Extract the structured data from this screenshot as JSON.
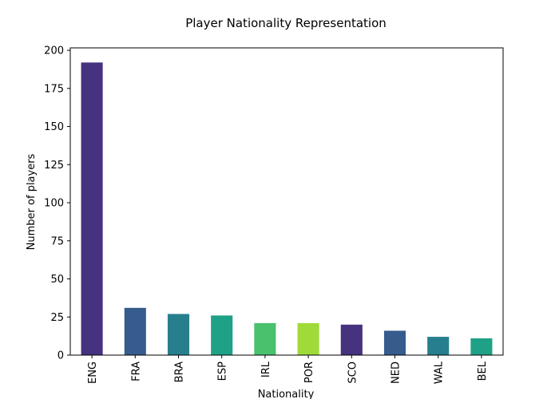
{
  "chart_data": {
    "type": "bar",
    "title": "Player Nationality Representation",
    "xlabel": "Nationality",
    "ylabel": "Number of players",
    "categories": [
      "ENG",
      "FRA",
      "BRA",
      "ESP",
      "IRL",
      "POR",
      "SCO",
      "NED",
      "WAL",
      "BEL"
    ],
    "values": [
      192,
      31,
      27,
      26,
      21,
      21,
      20,
      16,
      12,
      11
    ],
    "colors": [
      "#46327e",
      "#365c8d",
      "#277f8e",
      "#1fa187",
      "#4ac16d",
      "#a0da39",
      "#46327e",
      "#365c8d",
      "#277f8e",
      "#1fa187"
    ],
    "ylim": [
      0,
      201.6
    ],
    "yticks": [
      0,
      25,
      50,
      75,
      100,
      125,
      150,
      175,
      200
    ],
    "grid": false,
    "legend": "none"
  }
}
